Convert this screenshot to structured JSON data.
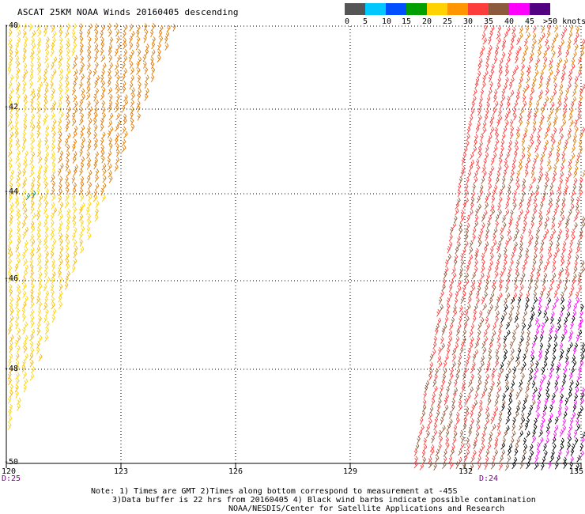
{
  "title": "ASCAT 25KM NOAA Winds 20160405 descending",
  "legend": {
    "colors": [
      "#555555",
      "#00c8ff",
      "#0050ff",
      "#00a000",
      "#ffd200",
      "#ff9600",
      "#ff3c3c",
      "#8c5a3c",
      "#ff00ff",
      "#500080"
    ],
    "labels": [
      "0",
      "5",
      "10",
      "15",
      "20",
      "25",
      "30",
      "35",
      "40",
      "45",
      ">50 knots"
    ]
  },
  "lat_labels": [
    "-40",
    "-42",
    "-44",
    "-46",
    "-48",
    "-50"
  ],
  "lon_labels": [
    "120",
    "123",
    "126",
    "129",
    "132",
    "135"
  ],
  "day_labels": {
    "left": "D:25",
    "right": "D:24"
  },
  "notes": {
    "line1": "Note: 1) Times are GMT 2)Times along bottom correspond to measurement at -45S",
    "line2": "3)Data buffer is 22 hrs from 20160405 4) Black wind barbs indicate possible contamination",
    "line3": "NOAA/NESDIS/Center for Satellite Applications and Research"
  },
  "swaths": {
    "west": {
      "dominant_colors": [
        "#ffd200",
        "#f5b400",
        "#e07800"
      ]
    },
    "east": {
      "dominant_colors": [
        "#ff3c3c",
        "#8c5a3c",
        "#e07800",
        "#000000",
        "#ff00ff"
      ]
    }
  }
}
